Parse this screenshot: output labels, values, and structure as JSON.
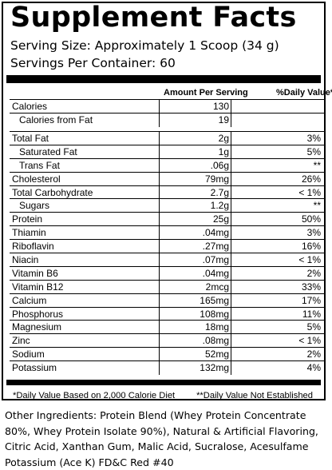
{
  "title": "Supplement Facts",
  "serving_size": "Serving Size: Approximately 1 Scoop (34 g)",
  "servings_per_container": "Servings Per Container: 60",
  "headers": {
    "amount": "Amount Per Serving",
    "daily_value": "%Daily Value*"
  },
  "calories_rows": [
    {
      "name": "Calories",
      "amount": "130",
      "dv": ""
    },
    {
      "name": "Calories from Fat",
      "amount": "19",
      "dv": ""
    }
  ],
  "nutrient_rows": [
    {
      "name": "Total Fat",
      "amount": "2g",
      "dv": "3%"
    },
    {
      "name": "Saturated Fat",
      "amount": "1g",
      "dv": "5%"
    },
    {
      "name": "Trans Fat",
      "amount": ".06g",
      "dv": "**"
    },
    {
      "name": "Cholesterol",
      "amount": "79mg",
      "dv": "26%"
    },
    {
      "name": "Total Carbohydrate",
      "amount": "2.7g",
      "dv": "< 1%"
    },
    {
      "name": "Sugars",
      "amount": "1.2g",
      "dv": "**"
    },
    {
      "name": "Protein",
      "amount": "25g",
      "dv": "50%"
    },
    {
      "name": "Thiamin",
      "amount": ".04mg",
      "dv": "3%"
    },
    {
      "name": "Riboflavin",
      "amount": ".27mg",
      "dv": "16%"
    },
    {
      "name": "Niacin",
      "amount": ".07mg",
      "dv": "< 1%"
    },
    {
      "name": "Vitamin B6",
      "amount": ".04mg",
      "dv": "2%"
    },
    {
      "name": "Vitamin B12",
      "amount": "2mcg",
      "dv": "33%"
    },
    {
      "name": "Calcium",
      "amount": "165mg",
      "dv": "17%"
    },
    {
      "name": "Phosphorus",
      "amount": "108mg",
      "dv": "11%"
    },
    {
      "name": "Magnesium",
      "amount": "18mg",
      "dv": "5%"
    },
    {
      "name": "Zinc",
      "amount": ".08mg",
      "dv": "< 1%"
    },
    {
      "name": "Sodium",
      "amount": "52mg",
      "dv": "2%"
    },
    {
      "name": "Potassium",
      "amount": "132mg",
      "dv": "4%"
    }
  ],
  "footnotes": {
    "left": "*Daily Value Based on 2,000 Calorie Diet",
    "right": "**Daily Value Not Established"
  },
  "ingredients": "Other Ingredients: Protein Blend (Whey Protein Concentrate 80%, Whey Protein Isolate 90%), Natural & Artificial Flavoring, Citric Acid, Xanthan Gum, Malic Acid, Sucralose, Acesulfame Potassium (Ace K) FD&C Red #40"
}
